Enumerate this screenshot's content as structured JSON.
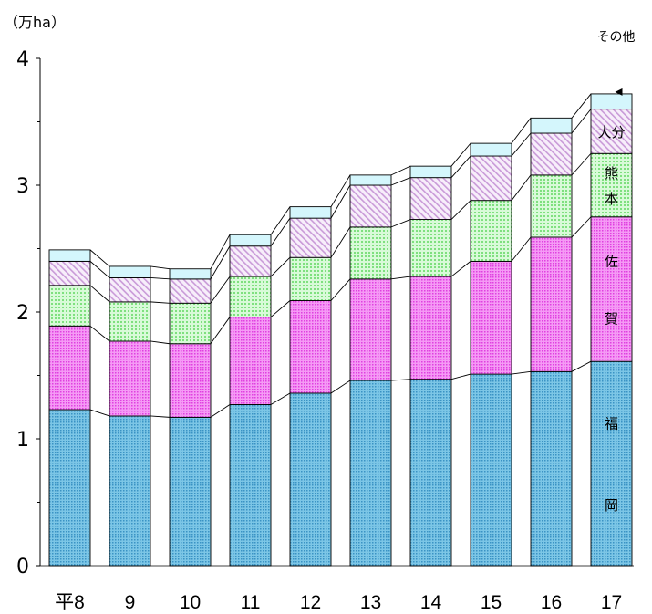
{
  "chart_data": {
    "type": "bar",
    "stacked": true,
    "unit_label": "（万ha）",
    "categories": [
      "平8",
      "9",
      "10",
      "11",
      "12",
      "13",
      "14",
      "15",
      "16",
      "17"
    ],
    "ylim": [
      0,
      4
    ],
    "yticks": [
      "0",
      "1",
      "2",
      "3",
      "4"
    ],
    "series": [
      {
        "name": "福岡",
        "values": [
          1.23,
          1.18,
          1.17,
          1.27,
          1.36,
          1.46,
          1.47,
          1.51,
          1.53,
          1.61
        ],
        "color": "#5bb0d8"
      },
      {
        "name": "佐賀",
        "values": [
          0.66,
          0.59,
          0.58,
          0.69,
          0.73,
          0.8,
          0.81,
          0.89,
          1.06,
          1.14
        ],
        "color": "#f06ef0"
      },
      {
        "name": "熊本",
        "values": [
          0.32,
          0.31,
          0.32,
          0.32,
          0.34,
          0.41,
          0.45,
          0.48,
          0.49,
          0.5
        ],
        "color": "#a8f0a8"
      },
      {
        "name": "大分",
        "values": [
          0.19,
          0.19,
          0.19,
          0.24,
          0.31,
          0.33,
          0.33,
          0.35,
          0.33,
          0.35
        ],
        "color": "#e0b8ec"
      },
      {
        "name": "その他",
        "values": [
          0.09,
          0.09,
          0.08,
          0.09,
          0.09,
          0.08,
          0.09,
          0.1,
          0.12,
          0.12
        ],
        "color": "#c8f4fa"
      }
    ],
    "series_labels": [
      {
        "text": "福",
        "series": 0,
        "offset": -0.2
      },
      {
        "text": "岡",
        "series": 0,
        "offset": 0.2
      },
      {
        "text": "佐",
        "series": 1,
        "offset": -0.2
      },
      {
        "text": "賀",
        "series": 1,
        "offset": 0.2
      },
      {
        "text": "熊",
        "series": 2,
        "offset": -0.2
      },
      {
        "text": "本",
        "series": 2,
        "offset": 0.2
      },
      {
        "text": "大分",
        "series": 3,
        "offset": 0
      }
    ],
    "other_callout": "その他"
  }
}
